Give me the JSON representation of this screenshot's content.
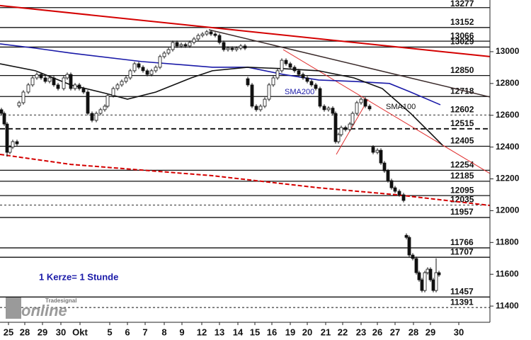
{
  "chart_data": {
    "type": "candlestick",
    "x": [
      -0.4,
      -0.24,
      -0.08,
      0.08,
      0.24,
      0.48,
      0.6,
      0.84,
      1.12,
      1.36,
      1.6,
      1.84,
      2.08,
      2.32,
      2.56,
      2.8,
      3.12,
      3.32,
      3.52,
      3.76,
      4,
      4.24,
      4.48,
      4.72,
      4.96,
      5.2,
      5.44,
      5.6,
      5.92,
      6.16,
      6.4,
      6.64,
      6.88,
      7.12,
      7.36,
      7.6,
      7.84,
      8.08,
      8.32,
      8.56,
      8.8,
      9.04,
      9.28,
      9.52,
      9.76,
      10,
      10.24,
      10.48,
      10.72,
      10.96,
      11.2,
      11.44,
      11.68,
      11.92,
      12.16,
      12.4,
      12.64,
      12.88,
      13.12,
      13.36,
      13.52,
      13.76,
      14,
      14.24,
      14.48,
      14.72,
      14.96,
      15.2,
      15.44,
      15.68,
      15.92,
      16.16,
      16.4,
      16.64,
      16.88,
      17.12,
      17.36,
      17.6,
      17.84,
      18.08,
      18.32,
      18.48,
      18.64,
      18.8,
      19.04,
      19.28,
      19.44,
      19.68,
      19.92,
      20.16,
      20.4,
      20.6,
      20.84,
      21.04,
      21.24,
      21.44,
      21.64,
      21.84,
      22.08,
      22.32,
      22.48,
      22.64,
      22.84,
      23.04,
      23.2,
      23.36,
      23.52,
      23.68,
      23.84,
      24,
      24.16,
      24.32
    ],
    "open": [
      12635,
      12612,
      12545,
      12367,
      12400,
      12434,
      12660,
      12679,
      12746,
      12791,
      12835,
      12857,
      12835,
      12813,
      12835,
      12791,
      12768,
      12835,
      12857,
      12768,
      12791,
      12768,
      12746,
      12612,
      12568,
      12612,
      12635,
      12657,
      12724,
      12768,
      12791,
      12813,
      12835,
      12880,
      12924,
      12902,
      12880,
      12857,
      12880,
      12902,
      12969,
      12991,
      13013,
      13058,
      13036,
      13045,
      13036,
      13058,
      13080,
      13102,
      13111,
      13125,
      13111,
      13102,
      13058,
      13013,
      13022,
      13013,
      13022,
      13036,
      12830,
      12791,
      12657,
      12635,
      12657,
      12701,
      12791,
      12835,
      12880,
      12946,
      12924,
      12902,
      12880,
      12857,
      12835,
      12813,
      12791,
      12768,
      12657,
      12635,
      12645,
      12612,
      12434,
      12478,
      12523,
      12510,
      12545,
      12612,
      12679,
      12701,
      12657,
      12400,
      12367,
      12380,
      12300,
      12250,
      12189,
      12144,
      12122,
      12100,
      11845,
      11832,
      11721,
      11699,
      11610,
      11565,
      11498,
      11610,
      11632,
      11565,
      11498,
      11610
    ],
    "high": [
      12647,
      12624,
      12557,
      12412,
      12446,
      12446,
      12691,
      12758,
      12803,
      12847,
      12869,
      12869,
      12847,
      12847,
      12847,
      12803,
      12847,
      12869,
      12869,
      12803,
      12803,
      12780,
      12758,
      12624,
      12624,
      12647,
      12669,
      12736,
      12780,
      12803,
      12825,
      12847,
      12892,
      12936,
      12936,
      12914,
      12892,
      12892,
      12914,
      12981,
      13003,
      13025,
      13070,
      13070,
      13057,
      13057,
      13070,
      13092,
      13114,
      13123,
      13137,
      13137,
      13123,
      13114,
      13070,
      13034,
      13034,
      13034,
      13048,
      13048,
      12842,
      12803,
      12669,
      12669,
      12713,
      12803,
      12847,
      12892,
      12958,
      12958,
      12936,
      12914,
      12892,
      12869,
      12847,
      12825,
      12803,
      12780,
      12669,
      12657,
      12657,
      12624,
      12490,
      12535,
      12535,
      12557,
      12624,
      12691,
      12713,
      12713,
      12669,
      12412,
      12392,
      12392,
      12312,
      12262,
      12201,
      12156,
      12134,
      12112,
      11857,
      11844,
      11733,
      11711,
      11622,
      11577,
      11622,
      11644,
      11644,
      11577,
      11700,
      11622
    ],
    "low": [
      12600,
      12533,
      12340,
      12355,
      12388,
      12408,
      12648,
      12667,
      12734,
      12779,
      12823,
      12823,
      12801,
      12801,
      12779,
      12756,
      12756,
      12823,
      12756,
      12756,
      12756,
      12734,
      12600,
      12556,
      12556,
      12600,
      12623,
      12645,
      12712,
      12756,
      12779,
      12801,
      12823,
      12868,
      12890,
      12868,
      12845,
      12845,
      12868,
      12890,
      12957,
      12979,
      13001,
      13024,
      13024,
      13024,
      13024,
      13046,
      13068,
      13090,
      13099,
      13099,
      13090,
      13046,
      13001,
      13001,
      13001,
      13001,
      13010,
      13010,
      12779,
      12645,
      12623,
      12623,
      12645,
      12689,
      12779,
      12823,
      12868,
      12912,
      12890,
      12868,
      12845,
      12823,
      12801,
      12779,
      12756,
      12645,
      12623,
      12623,
      12600,
      12422,
      12422,
      12466,
      12498,
      12498,
      12533,
      12600,
      12667,
      12645,
      12628,
      12355,
      12355,
      12288,
      12238,
      12177,
      12132,
      12110,
      12088,
      12052,
      11820,
      11709,
      11687,
      11598,
      11553,
      11486,
      11486,
      11598,
      11553,
      11486,
      11486,
      11584
    ],
    "close": [
      12612,
      12545,
      12367,
      12400,
      12434,
      12420,
      12679,
      12746,
      12791,
      12835,
      12857,
      12835,
      12813,
      12835,
      12791,
      12768,
      12835,
      12857,
      12768,
      12791,
      12768,
      12746,
      12612,
      12568,
      12612,
      12635,
      12657,
      12724,
      12768,
      12791,
      12813,
      12835,
      12880,
      12924,
      12902,
      12880,
      12857,
      12880,
      12902,
      12969,
      12991,
      13013,
      13058,
      13036,
      13045,
      13036,
      13058,
      13080,
      13102,
      13111,
      13125,
      13111,
      13102,
      13058,
      13013,
      13022,
      13013,
      13022,
      13036,
      13022,
      12791,
      12657,
      12635,
      12657,
      12701,
      12791,
      12835,
      12880,
      12946,
      12924,
      12902,
      12880,
      12857,
      12835,
      12813,
      12791,
      12768,
      12657,
      12635,
      12645,
      12612,
      12434,
      12478,
      12523,
      12510,
      12545,
      12612,
      12679,
      12701,
      12657,
      12640,
      12367,
      12380,
      12300,
      12250,
      12189,
      12144,
      12122,
      12100,
      12064,
      11832,
      11721,
      11699,
      11610,
      11565,
      11498,
      11610,
      11632,
      11565,
      11498,
      11610,
      11596
    ],
    "xlim": [
      -0.48,
      27.2
    ],
    "ylim": [
      11298,
      13325
    ],
    "yticks": [
      11400,
      11600,
      11800,
      12000,
      12200,
      12400,
      12600,
      12800,
      13000
    ],
    "xticks": [
      {
        "value": 0,
        "label": "25"
      },
      {
        "value": 0.92,
        "label": "28"
      },
      {
        "value": 1.92,
        "label": "29"
      },
      {
        "value": 2.96,
        "label": "30"
      },
      {
        "value": 4.04,
        "label": "Okt"
      },
      {
        "value": 5.72,
        "label": "5"
      },
      {
        "value": 6.72,
        "label": "6"
      },
      {
        "value": 7.72,
        "label": "7"
      },
      {
        "value": 8.8,
        "label": "8"
      },
      {
        "value": 9.8,
        "label": "9"
      },
      {
        "value": 10.92,
        "label": "12"
      },
      {
        "value": 11.92,
        "label": "13"
      },
      {
        "value": 12.96,
        "label": "14"
      },
      {
        "value": 13.92,
        "label": "15"
      },
      {
        "value": 14.88,
        "label": "16"
      },
      {
        "value": 15.92,
        "label": "19"
      },
      {
        "value": 16.88,
        "label": "20"
      },
      {
        "value": 17.92,
        "label": "21"
      },
      {
        "value": 18.88,
        "label": "22"
      },
      {
        "value": 19.92,
        "label": "23"
      },
      {
        "value": 20.84,
        "label": "26"
      },
      {
        "value": 21.84,
        "label": "27"
      },
      {
        "value": 22.88,
        "label": "28"
      },
      {
        "value": 23.84,
        "label": "29"
      },
      {
        "value": 25.44,
        "label": "30"
      }
    ],
    "levels": [
      {
        "value": 13277,
        "style": "solid"
      },
      {
        "value": 13152,
        "style": "solid"
      },
      {
        "value": 13066,
        "style": "solid"
      },
      {
        "value": 13029,
        "style": "solid"
      },
      {
        "value": 12850,
        "style": "solid"
      },
      {
        "value": 12718,
        "style": "solid"
      },
      {
        "value": 12602,
        "style": "dotted"
      },
      {
        "value": 12515,
        "style": "dashed"
      },
      {
        "value": 12405,
        "style": "solid"
      },
      {
        "value": 12254,
        "style": "solid"
      },
      {
        "value": 12185,
        "style": "solid"
      },
      {
        "value": 12095,
        "style": "solid"
      },
      {
        "value": 12035,
        "style": "dotted"
      },
      {
        "value": 11957,
        "style": "solid"
      },
      {
        "value": 11766,
        "style": "solid"
      },
      {
        "value": 11707,
        "style": "solid"
      },
      {
        "value": 11457,
        "style": "solid"
      },
      {
        "value": 11391,
        "style": "dotted"
      }
    ],
    "lines": [
      {
        "color": "#d40000",
        "width": 2,
        "x": [
          -0.48,
          27.2
        ],
        "values": [
          13290,
          12969
        ]
      },
      {
        "color": "#3a2a2a",
        "width": 1.5,
        "x": [
          11.32,
          27.2
        ],
        "values": [
          13138,
          12715
        ]
      },
      {
        "color": "#e03030",
        "width": 1,
        "x": [
          15.52,
          27.2
        ],
        "values": [
          13013,
          12234
        ]
      },
      {
        "color": "#e03030",
        "width": 1,
        "x": [
          18.52,
          20.32
        ],
        "values": [
          12354,
          12701
        ]
      },
      {
        "color": "#d40000",
        "width": 2,
        "dash": "6 3",
        "x": [
          -0.48,
          3.52,
          11.52,
          17.52,
          21.92,
          27.2
        ],
        "values": [
          12354,
          12291,
          12220,
          12144,
          12100,
          12033
        ]
      },
      {
        "name": "SMA200",
        "color": "#1a1aa8",
        "width": 1.6,
        "x": [
          -0.48,
          1.52,
          3.52,
          7.52,
          11.52,
          13.52,
          15.52,
          17.52,
          19.52,
          21.52,
          22.72,
          24.4
        ],
        "values": [
          13049,
          13022,
          12991,
          12938,
          12902,
          12902,
          12857,
          12822,
          12813,
          12800,
          12746,
          12666
        ]
      },
      {
        "name": "SMA100",
        "color": "#111111",
        "width": 1.6,
        "x": [
          -0.48,
          1.52,
          3.52,
          5.52,
          6.72,
          8.32,
          10.32,
          11.52,
          13.52,
          15.52,
          17.52,
          19.52,
          21.12,
          22.72,
          23.72,
          24.52
        ],
        "values": [
          12924,
          12880,
          12791,
          12737,
          12701,
          12746,
          12835,
          12880,
          12902,
          12893,
          12880,
          12835,
          12768,
          12612,
          12501,
          12412
        ]
      }
    ],
    "annotation": "1 Kerze= 1 Stunde"
  },
  "watermark": {
    "brand": "Tradesignal",
    "word": "online"
  }
}
